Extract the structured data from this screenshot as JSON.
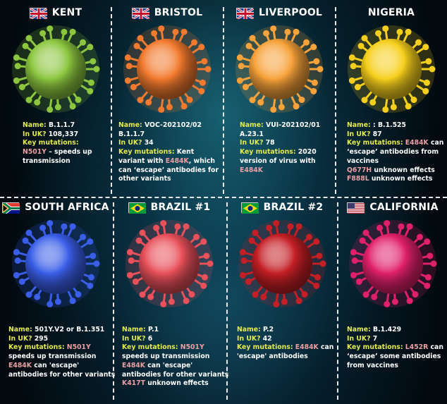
{
  "colors": {
    "label": "#e4ea4e",
    "value": "#ffffff",
    "mutation": "#ec9fa3"
  },
  "variants": [
    {
      "title": "KENT",
      "flag": "uk-flag-icon",
      "virus_color": "#8cc63f",
      "lines": [
        [
          {
            "t": "Name: ",
            "c": "lab"
          },
          {
            "t": "B.1.1.7",
            "c": "val"
          }
        ],
        [
          {
            "t": "In UK? ",
            "c": "lab"
          },
          {
            "t": "108,337",
            "c": "val"
          }
        ],
        [
          {
            "t": "Key mutations:",
            "c": "lab"
          }
        ],
        [
          {
            "t": "N501Y",
            "c": "mut"
          },
          {
            "t": " – speeds up",
            "c": "val"
          }
        ],
        [
          {
            "t": "transmission",
            "c": "val"
          }
        ]
      ]
    },
    {
      "title": "BRISTOL",
      "flag": "uk-flag-icon",
      "virus_color": "#f27a2e",
      "lines": [
        [
          {
            "t": "Name: ",
            "c": "lab"
          },
          {
            "t": "VOC-202102/02",
            "c": "val"
          }
        ],
        [
          {
            "t": "B.1.1.7",
            "c": "val"
          }
        ],
        [
          {
            "t": "In UK? ",
            "c": "lab"
          },
          {
            "t": "34",
            "c": "val"
          }
        ],
        [
          {
            "t": "Key mutations: ",
            "c": "lab"
          },
          {
            "t": "Kent",
            "c": "val"
          }
        ],
        [
          {
            "t": "variant with ",
            "c": "val"
          },
          {
            "t": "E484K",
            "c": "mut"
          },
          {
            "t": ", which",
            "c": "val"
          }
        ],
        [
          {
            "t": "can ‘escape’ antibodies for",
            "c": "val"
          }
        ],
        [
          {
            "t": "other variants",
            "c": "val"
          }
        ]
      ]
    },
    {
      "title": "LIVERPOOL",
      "flag": "uk-flag-icon",
      "virus_color": "#f7a23a",
      "lines": [
        [
          {
            "t": "Name: ",
            "c": "lab"
          },
          {
            "t": "VUI-202102/01",
            "c": "val"
          }
        ],
        [
          {
            "t": "A.23.1",
            "c": "val"
          }
        ],
        [
          {
            "t": "In UK? ",
            "c": "lab"
          },
          {
            "t": "78",
            "c": "val"
          }
        ],
        [
          {
            "t": "Key mutations: ",
            "c": "lab"
          },
          {
            "t": "2020",
            "c": "val"
          }
        ],
        [
          {
            "t": "version of virus with",
            "c": "val"
          }
        ],
        [
          {
            "t": "E484K",
            "c": "mut"
          }
        ]
      ]
    },
    {
      "title": "NIGERIA",
      "flag": "",
      "virus_color": "#f6cf1c",
      "lines": [
        [
          {
            "t": "Name: ",
            "c": "lab"
          },
          {
            "t": ": B.1.525",
            "c": "val"
          }
        ],
        [
          {
            "t": "In UK? ",
            "c": "lab"
          },
          {
            "t": "87",
            "c": "val"
          }
        ],
        [
          {
            "t": "Key mutations: ",
            "c": "lab"
          },
          {
            "t": "E484K",
            "c": "mut"
          },
          {
            "t": " can",
            "c": "val"
          }
        ],
        [
          {
            "t": "‘escape’ antibodies from",
            "c": "val"
          }
        ],
        [
          {
            "t": "vaccines",
            "c": "val"
          }
        ],
        [
          {
            "t": "Q677H",
            "c": "mut"
          },
          {
            "t": " unknown effects",
            "c": "val"
          }
        ],
        [
          {
            "t": "F888L",
            "c": "mut"
          },
          {
            "t": " unknown effects",
            "c": "val"
          }
        ]
      ]
    },
    {
      "title": "SOUTH AFRICA",
      "flag": "south-africa-flag-icon",
      "virus_color": "#3a5ee8",
      "lines": [
        [
          {
            "t": "Name: ",
            "c": "lab"
          },
          {
            "t": "501Y.V2 or B.1.351",
            "c": "val"
          }
        ],
        [
          {
            "t": "In UK? ",
            "c": "lab"
          },
          {
            "t": "295",
            "c": "val"
          }
        ],
        [
          {
            "t": "Key mutations: ",
            "c": "lab"
          },
          {
            "t": "N501Y",
            "c": "mut"
          }
        ],
        [
          {
            "t": "speeds up transmission",
            "c": "val"
          }
        ],
        [
          {
            "t": "E484K",
            "c": "mut"
          },
          {
            "t": " can 'escape'",
            "c": "val"
          }
        ],
        [
          {
            "t": "antibodies for other variants",
            "c": "val"
          }
        ]
      ]
    },
    {
      "title": "BRAZIL #1",
      "flag": "brazil-flag-icon",
      "virus_color": "#e8505a",
      "lines": [
        [
          {
            "t": "Name: ",
            "c": "lab"
          },
          {
            "t": "P.1",
            "c": "val"
          }
        ],
        [
          {
            "t": "In UK? ",
            "c": "lab"
          },
          {
            "t": "6",
            "c": "val"
          }
        ],
        [
          {
            "t": "Key mutations: ",
            "c": "lab"
          },
          {
            "t": "N501Y",
            "c": "mut"
          }
        ],
        [
          {
            "t": "speeds up transmission",
            "c": "val"
          }
        ],
        [
          {
            "t": "E484K",
            "c": "mut"
          },
          {
            "t": " can 'escape'",
            "c": "val"
          }
        ],
        [
          {
            "t": "antibodies for other variants",
            "c": "val"
          }
        ],
        [
          {
            "t": "K417T",
            "c": "mut"
          },
          {
            "t": " unknown effects",
            "c": "val"
          }
        ]
      ]
    },
    {
      "title": "BRAZIL #2",
      "flag": "brazil-flag-icon",
      "virus_color": "#c41f25",
      "lines": [
        [
          {
            "t": "Name: ",
            "c": "lab"
          },
          {
            "t": "P.2",
            "c": "val"
          }
        ],
        [
          {
            "t": "In UK? ",
            "c": "lab"
          },
          {
            "t": "42",
            "c": "val"
          }
        ],
        [
          {
            "t": "Key mutations: ",
            "c": "lab"
          },
          {
            "t": "E484K",
            "c": "mut"
          },
          {
            "t": " can",
            "c": "val"
          }
        ],
        [
          {
            "t": "'escape' antibodies",
            "c": "val"
          }
        ]
      ]
    },
    {
      "title": "CALIFORNIA",
      "flag": "usa-flag-icon",
      "virus_color": "#e0206a",
      "lines": [
        [
          {
            "t": "Name: ",
            "c": "lab"
          },
          {
            "t": "B.1.429",
            "c": "val"
          }
        ],
        [
          {
            "t": "In UK? ",
            "c": "lab"
          },
          {
            "t": "7",
            "c": "val"
          }
        ],
        [
          {
            "t": "Key mutations: ",
            "c": "lab"
          },
          {
            "t": "L452R",
            "c": "mut"
          },
          {
            "t": " can",
            "c": "val"
          }
        ],
        [
          {
            "t": "‘escape’ some antibodies",
            "c": "val"
          }
        ],
        [
          {
            "t": "from vaccines",
            "c": "val"
          }
        ]
      ]
    }
  ]
}
